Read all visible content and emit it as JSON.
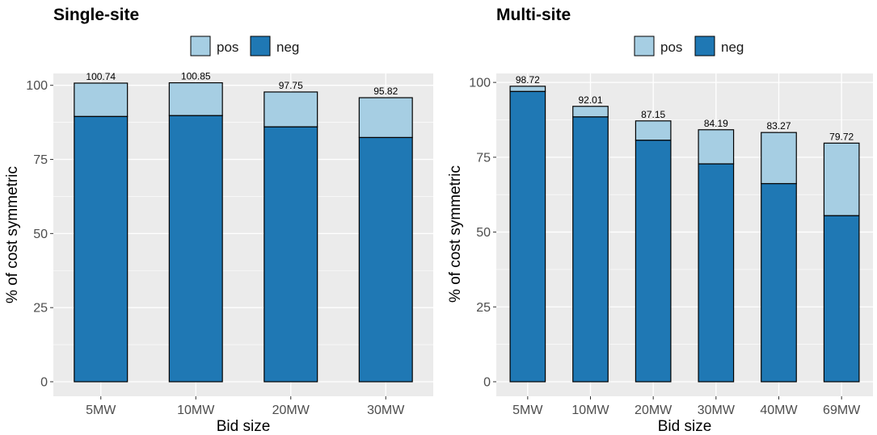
{
  "colors": {
    "pos": "#a6cee3",
    "neg": "#1f78b4",
    "panel_bg": "#ebebeb",
    "grid": "#ffffff",
    "bar_outline": "#000000"
  },
  "chart_data": [
    {
      "type": "bar",
      "stacked": true,
      "title": "Single-site",
      "xlabel": "Bid size",
      "ylabel": "% of cost symmetric",
      "categories": [
        "5MW",
        "10MW",
        "20MW",
        "30MW"
      ],
      "series": [
        {
          "name": "neg",
          "values": [
            89.5,
            89.8,
            86.0,
            82.4
          ]
        },
        {
          "name": "pos",
          "values": [
            11.24,
            11.05,
            11.75,
            13.42
          ]
        }
      ],
      "totals": [
        100.74,
        100.85,
        97.75,
        95.82
      ],
      "total_labels": [
        "100.74",
        "100.85",
        "97.75",
        "95.82"
      ],
      "yticks": [
        0,
        25,
        50,
        75,
        100
      ],
      "ytick_labels": [
        "0",
        "25",
        "50",
        "75",
        "100"
      ],
      "ylim": [
        0,
        104
      ],
      "legend": {
        "position": "top",
        "entries": [
          "pos",
          "neg"
        ]
      },
      "grid": true
    },
    {
      "type": "bar",
      "stacked": true,
      "title": "Multi-site",
      "xlabel": "Bid size",
      "ylabel": "% of cost symmetric",
      "categories": [
        "5MW",
        "10MW",
        "20MW",
        "30MW",
        "40MW",
        "69MW"
      ],
      "series": [
        {
          "name": "neg",
          "values": [
            97.0,
            88.5,
            80.7,
            72.8,
            66.2,
            55.5
          ]
        },
        {
          "name": "pos",
          "values": [
            1.72,
            3.51,
            6.45,
            11.39,
            17.07,
            24.22
          ]
        }
      ],
      "totals": [
        98.72,
        92.01,
        87.15,
        84.19,
        83.27,
        79.72
      ],
      "total_labels": [
        "98.72",
        "92.01",
        "87.15",
        "84.19",
        "83.27",
        "79.72"
      ],
      "yticks": [
        0,
        25,
        50,
        75,
        100
      ],
      "ytick_labels": [
        "0",
        "25",
        "50",
        "75",
        "100"
      ],
      "ylim": [
        0,
        103
      ],
      "legend": {
        "position": "top",
        "entries": [
          "pos",
          "neg"
        ]
      },
      "grid": true
    }
  ]
}
